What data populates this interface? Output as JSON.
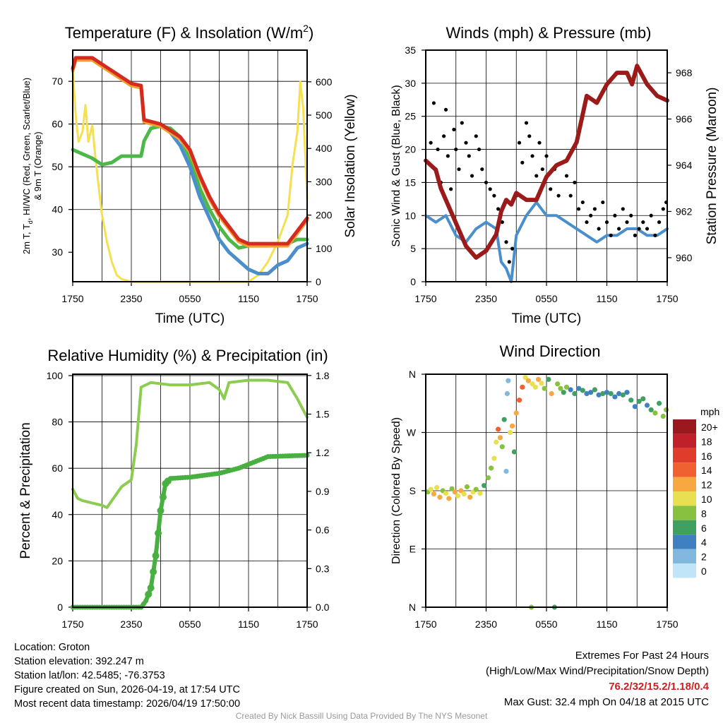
{
  "colors": {
    "red": "#d42a20",
    "green": "#4cb848",
    "blue": "#4a8fcc",
    "orange": "#f0a030",
    "yellow": "#f5e050",
    "maroon": "#9b1b1b",
    "rh": "#8ccc50",
    "precip": "#48b040",
    "extremes": "#cc2020",
    "footer": "#999999"
  },
  "chart_data": [
    {
      "type": "line",
      "title": "Temperature (F) & Insolation (W/m²)",
      "title_main": "Temperature (F) & Insolation (W/m",
      "title_sup": "2",
      "title_end": ")",
      "xlabel": "Time (UTC)",
      "ylabel_line1": "2m T, T",
      "ylabel_sub": "d",
      "ylabel_rest": ", HI/WC (Red, Green, Scarlet/Blue)",
      "ylabel_line2": "& 9m T (Orange)",
      "y2label": "Solar Insolation (Yellow)",
      "xlim": [
        0,
        24
      ],
      "ylim": [
        23.1,
        77.3
      ],
      "y2lim": [
        0,
        695
      ],
      "xticks": [
        0,
        6,
        12,
        18,
        24
      ],
      "xticklabels": [
        "1750",
        "2350",
        "0550",
        "1150",
        "1750"
      ],
      "yticks": [
        30,
        40,
        50,
        60,
        70
      ],
      "y2ticks": [
        0,
        100,
        200,
        300,
        400,
        500,
        600
      ],
      "series": [
        {
          "name": "Solar insolation",
          "axis": "y2",
          "color": "yellow",
          "x": [
            0,
            0.3,
            0.6,
            1,
            1.3,
            1.6,
            2,
            2.3,
            2.6,
            3,
            3.5,
            4,
            4.5,
            5,
            6,
            18,
            19,
            20,
            21,
            22,
            22.5,
            23,
            23.3,
            23.6,
            24
          ],
          "y": [
            640,
            500,
            420,
            450,
            530,
            420,
            470,
            380,
            300,
            200,
            120,
            60,
            20,
            8,
            0,
            0,
            20,
            60,
            120,
            200,
            350,
            450,
            600,
            520,
            250
          ]
        },
        {
          "name": "Dewpoint",
          "axis": "y",
          "color": "green",
          "x": [
            0,
            1,
            2,
            3,
            4,
            5,
            7,
            7.3,
            8,
            9,
            10,
            11,
            12,
            13,
            14,
            15,
            16,
            17,
            18,
            20,
            22,
            23,
            24
          ],
          "y": [
            54,
            53,
            52,
            50.5,
            51,
            52.5,
            52.5,
            56,
            59,
            59.5,
            59,
            57,
            52,
            45,
            40,
            36,
            33,
            31,
            31.5,
            31.5,
            32,
            33,
            33
          ]
        },
        {
          "name": "Wind chill",
          "axis": "y",
          "color": "blue",
          "x": [
            10,
            11,
            12,
            13,
            14,
            15,
            16,
            17,
            18,
            19,
            20,
            21,
            22,
            23,
            24
          ],
          "y": [
            58,
            55,
            50,
            43,
            38,
            33,
            30,
            28,
            26,
            25,
            25,
            27,
            28,
            31,
            32
          ]
        },
        {
          "name": "9m Temperature",
          "axis": "y",
          "color": "orange",
          "x": [
            0,
            0.3,
            2,
            3,
            5,
            6,
            7,
            7.3,
            9,
            11,
            12,
            13,
            14,
            15,
            16,
            17,
            18,
            22,
            23,
            24
          ],
          "y": [
            72.5,
            75,
            75,
            73.5,
            70.5,
            69,
            68.5,
            60.5,
            59.5,
            56.5,
            53.5,
            47.5,
            42.5,
            38.5,
            35.5,
            32.5,
            31.5,
            31.5,
            34.5,
            37.5
          ]
        },
        {
          "name": "Temperature",
          "axis": "y",
          "color": "red",
          "x": [
            0,
            0.3,
            2,
            3,
            5,
            6,
            7,
            7.3,
            9,
            11,
            12,
            13,
            14,
            15,
            16,
            17,
            18,
            22,
            23,
            24
          ],
          "y": [
            73,
            75.5,
            75.5,
            74,
            71,
            69.5,
            69,
            61,
            60,
            57,
            54,
            48,
            43,
            39,
            36,
            33,
            32,
            32,
            35,
            38
          ]
        }
      ]
    },
    {
      "type": "line",
      "title": "Winds (mph) & Pressure (mb)",
      "xlabel": "Time (UTC)",
      "ylabel": "Sonic Wind & Gust (Blue, Black)",
      "y2label": "Station Pressure (Maroon)",
      "xlim": [
        0,
        24
      ],
      "ylim": [
        0,
        35
      ],
      "y2lim": [
        958.96,
        968.98
      ],
      "xticks": [
        0,
        6,
        12,
        18,
        24
      ],
      "xticklabels": [
        "1750",
        "2350",
        "0550",
        "1150",
        "1750"
      ],
      "yticks": [
        0,
        5,
        10,
        15,
        20,
        25,
        30,
        35
      ],
      "y2ticks": [
        960,
        962,
        964,
        966,
        968
      ],
      "series": [
        {
          "name": "Sonic wind",
          "axis": "y",
          "color": "blue",
          "x": [
            0,
            1,
            2,
            3,
            4,
            5,
            6,
            7,
            7.5,
            8,
            8.5,
            9,
            10,
            11,
            12,
            13,
            14,
            15,
            16,
            17,
            18,
            19,
            20,
            21,
            22,
            23,
            24
          ],
          "y": [
            10,
            9,
            10,
            7,
            6,
            8,
            9,
            8,
            3,
            2,
            0,
            7,
            10,
            12,
            10,
            10,
            9,
            8,
            7,
            6,
            7,
            7,
            8,
            8,
            7,
            7,
            8
          ]
        },
        {
          "name": "Station pressure",
          "axis": "y2",
          "color": "maroon",
          "x": [
            0,
            1,
            1.5,
            2,
            3,
            4,
            5,
            6,
            7,
            7.5,
            8,
            8.5,
            9,
            10,
            11,
            12,
            13,
            14,
            15,
            15.5,
            16,
            17,
            18,
            19,
            20,
            20.5,
            21,
            22,
            23,
            24
          ],
          "y": [
            964.2,
            963.8,
            963,
            962.5,
            961.5,
            960.5,
            960,
            960.3,
            961,
            962,
            962.5,
            962.3,
            962.8,
            962.5,
            962.5,
            963.5,
            964,
            964.2,
            965,
            966,
            967,
            966.7,
            967.5,
            968,
            968,
            967.5,
            968.3,
            967.5,
            967,
            966.8
          ]
        }
      ],
      "gusts": {
        "color": "#000000",
        "x": [
          0.2,
          0.5,
          0.8,
          1,
          1.2,
          1.5,
          1.8,
          2,
          2.2,
          2.5,
          2.8,
          3,
          3.3,
          3.6,
          4,
          4.3,
          4.6,
          5,
          5.3,
          5.6,
          6,
          6.4,
          6.8,
          7.2,
          7.6,
          8,
          8.3,
          8.6,
          9,
          9.3,
          9.6,
          10,
          10.3,
          10.6,
          11,
          11.3,
          11.6,
          12,
          12.4,
          12.8,
          13.2,
          13.6,
          14,
          14.4,
          14.8,
          15.2,
          15.6,
          16,
          16.4,
          16.8,
          17.2,
          17.6,
          18,
          18.4,
          18.8,
          19.2,
          19.6,
          20,
          20.4,
          20.8,
          21.2,
          21.6,
          22,
          22.4,
          22.8,
          23.2,
          23.6,
          23.9
        ],
        "y": [
          18,
          21,
          27,
          17,
          20,
          15,
          22,
          26,
          19,
          14,
          23,
          20,
          17,
          24,
          21,
          19,
          16,
          22,
          20,
          17,
          15,
          14,
          13,
          11,
          9,
          6,
          3,
          5,
          13,
          21,
          18,
          24,
          22,
          19,
          16,
          21,
          17,
          19,
          14,
          17,
          13,
          18,
          16,
          13,
          15,
          11,
          12,
          9,
          10,
          11,
          8,
          12,
          9,
          7,
          10,
          8,
          11,
          9,
          10,
          7,
          8,
          9,
          8,
          10,
          7,
          9,
          11,
          12
        ]
      }
    },
    {
      "type": "line",
      "title": "Relative Humidity (%) & Precipitation (in)",
      "ylabel": "Percent & Precipitation",
      "xlim": [
        0,
        24
      ],
      "ylim": [
        0,
        100.6
      ],
      "y2lim": [
        0,
        1.81
      ],
      "xticks": [
        0,
        6,
        12,
        18,
        24
      ],
      "xticklabels": [
        "1750",
        "2350",
        "0550",
        "1150",
        "1750"
      ],
      "yticks": [
        0,
        20,
        40,
        60,
        80,
        100
      ],
      "y2ticks": [
        0,
        0.3,
        0.6,
        0.9,
        1.2,
        1.5,
        1.8
      ],
      "y2ticklabels": [
        "0.0",
        "0.3",
        "0.6",
        "0.9",
        "1.2",
        "1.5",
        "1.8"
      ],
      "series": [
        {
          "name": "Relative humidity",
          "axis": "y",
          "color": "rh",
          "x": [
            0,
            0.5,
            1,
            2,
            3,
            3.5,
            4,
            5,
            6,
            6.5,
            7,
            8,
            10,
            12,
            14,
            15,
            15.5,
            16,
            18,
            20,
            22,
            23,
            24
          ],
          "y": [
            51,
            47,
            46,
            45,
            44,
            43,
            46,
            52,
            55,
            70,
            95,
            97,
            96,
            96,
            97,
            94,
            90,
            97,
            98,
            98,
            97,
            90,
            82
          ]
        },
        {
          "name": "Precipitation",
          "axis": "y2",
          "color": "precip",
          "x": [
            0,
            7,
            7.5,
            8,
            8.5,
            9,
            9.5,
            10,
            12,
            15,
            17,
            19,
            20,
            24
          ],
          "y": [
            0,
            0,
            0.05,
            0.15,
            0.4,
            0.75,
            0.96,
            1.0,
            1.01,
            1.04,
            1.08,
            1.14,
            1.17,
            1.18
          ]
        }
      ]
    },
    {
      "type": "scatter",
      "title": "Wind Direction",
      "ylabel": "Direction (Colored By Speed)",
      "xlim": [
        0,
        24
      ],
      "ylim": [
        0,
        360
      ],
      "xticks": [
        0,
        6,
        12,
        18,
        24
      ],
      "xticklabels": [
        "1750",
        "2350",
        "0550",
        "1150",
        "1750"
      ],
      "yticks": [
        0,
        90,
        180,
        270,
        360
      ],
      "yticklabels": [
        "N",
        "E",
        "S",
        "W",
        "N"
      ],
      "colorbar": {
        "title": "mph",
        "labels": [
          "20+",
          "18",
          "16",
          "14",
          "12",
          "10",
          "8",
          "6",
          "4",
          "2",
          "0"
        ],
        "colors": [
          "#99191e",
          "#c0202a",
          "#e03c2c",
          "#f06030",
          "#f8a840",
          "#e8e050",
          "#88c040",
          "#40a060",
          "#4080c0",
          "#80b8e0",
          "#c0e4f8"
        ]
      },
      "points": [
        [
          0.2,
          178,
          8
        ],
        [
          0.5,
          182,
          10
        ],
        [
          0.8,
          175,
          12
        ],
        [
          1.1,
          185,
          9
        ],
        [
          1.4,
          170,
          11
        ],
        [
          1.7,
          180,
          7
        ],
        [
          2,
          176,
          10
        ],
        [
          2.3,
          168,
          12
        ],
        [
          2.6,
          183,
          8
        ],
        [
          2.9,
          178,
          11
        ],
        [
          3.2,
          172,
          9
        ],
        [
          3.5,
          180,
          12
        ],
        [
          3.8,
          175,
          10
        ],
        [
          4.1,
          186,
          8
        ],
        [
          4.4,
          170,
          11
        ],
        [
          4.7,
          178,
          10
        ],
        [
          5,
          182,
          7
        ],
        [
          5.4,
          176,
          9
        ],
        [
          5.8,
          188,
          6
        ],
        [
          6.2,
          200,
          8
        ],
        [
          6.5,
          215,
          7
        ],
        [
          6.8,
          230,
          9
        ],
        [
          7,
          255,
          10
        ],
        [
          7.2,
          275,
          14
        ],
        [
          7.4,
          262,
          12
        ],
        [
          7.6,
          248,
          8
        ],
        [
          7.8,
          290,
          6
        ],
        [
          8,
          210,
          2
        ],
        [
          8.1,
          330,
          2
        ],
        [
          8.2,
          350,
          1
        ],
        [
          8.4,
          270,
          10
        ],
        [
          8.6,
          280,
          12
        ],
        [
          8.8,
          240,
          6
        ],
        [
          9,
          300,
          12
        ],
        [
          9.3,
          320,
          14
        ],
        [
          9.6,
          340,
          13
        ],
        [
          9.9,
          355,
          10
        ],
        [
          10.2,
          350,
          12
        ],
        [
          10.5,
          0,
          8
        ],
        [
          10.6,
          345,
          10
        ],
        [
          10.9,
          340,
          9
        ],
        [
          11.2,
          352,
          11
        ],
        [
          11.5,
          346,
          10
        ],
        [
          11.8,
          338,
          7
        ],
        [
          12.2,
          352,
          6
        ],
        [
          12.5,
          330,
          12
        ],
        [
          12.8,
          0,
          6
        ],
        [
          13.1,
          345,
          8
        ],
        [
          13.4,
          338,
          7
        ],
        [
          13.7,
          332,
          6
        ],
        [
          14,
          340,
          8
        ],
        [
          14.4,
          336,
          4
        ],
        [
          14.8,
          330,
          6
        ],
        [
          15.2,
          338,
          4
        ],
        [
          15.6,
          335,
          5
        ],
        [
          16,
          330,
          4
        ],
        [
          16.4,
          332,
          3
        ],
        [
          16.8,
          336,
          6
        ],
        [
          17.2,
          328,
          4
        ],
        [
          17.6,
          330,
          5
        ],
        [
          18,
          332,
          4
        ],
        [
          18.4,
          330,
          6
        ],
        [
          18.8,
          325,
          4
        ],
        [
          19.2,
          330,
          3
        ],
        [
          19.6,
          328,
          5
        ],
        [
          20,
          332,
          4
        ],
        [
          20.4,
          320,
          6
        ],
        [
          20.8,
          310,
          4
        ],
        [
          21.2,
          318,
          5
        ],
        [
          21.6,
          322,
          6
        ],
        [
          22,
          312,
          4
        ],
        [
          22.4,
          305,
          6
        ],
        [
          22.8,
          300,
          7
        ],
        [
          23.2,
          315,
          5
        ],
        [
          23.6,
          295,
          8
        ],
        [
          23.9,
          305,
          7
        ]
      ]
    }
  ],
  "info": {
    "location": "Location: Groton",
    "elevation": "Station elevation: 392.247 m",
    "latlon": "Station lat/lon: 42.5485; -76.3753",
    "created": "Figure created on Sun, 2026-04-19, at 17:54 UTC",
    "recent": "Most recent data timestamp: 2026/04/19 17:50:00"
  },
  "extremes": {
    "title": "Extremes For Past 24 Hours",
    "subtitle": "(High/Low/Max Wind/Precipitation/Snow Depth)",
    "values": "76.2/32/15.2/1.18/0.4",
    "gust": "Max Gust: 32.4 mph On 04/18 at 2015 UTC"
  },
  "footer": "Created By Nick Bassill Using Data Provided By The NYS Mesonet"
}
